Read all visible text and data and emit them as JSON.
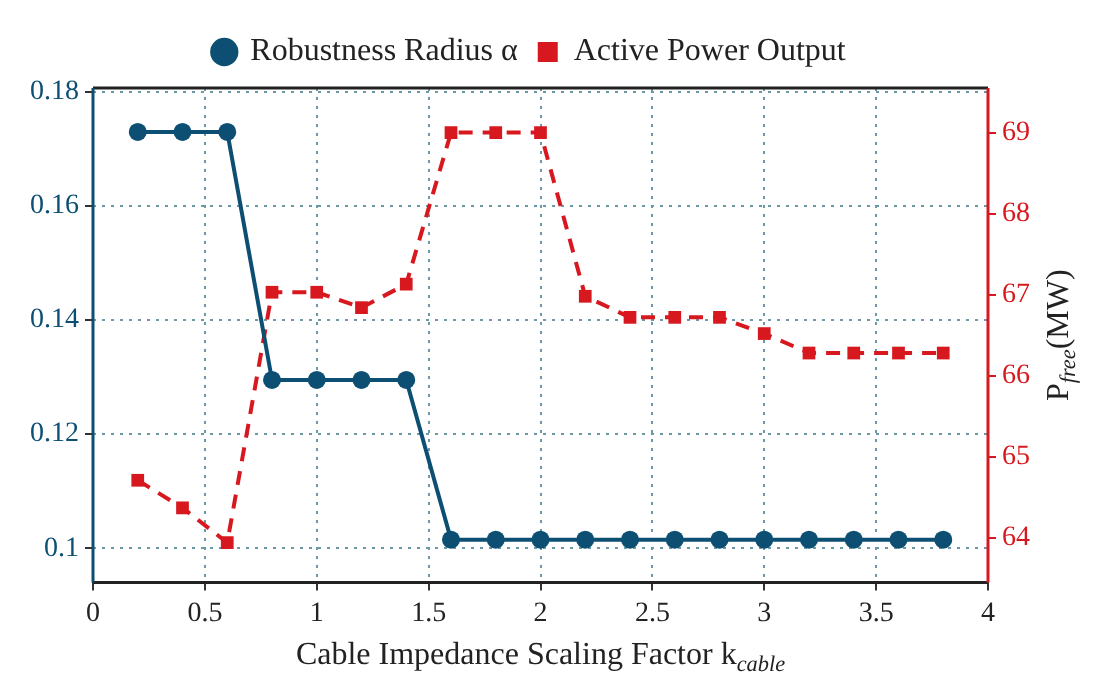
{
  "chart_data": {
    "type": "line",
    "xlabel": "Cable Impedance Scaling Factor k$_{cable}$",
    "y2label": "P$_{free}$(MW)",
    "xlim": [
      0,
      4
    ],
    "xticks": [
      0,
      0.5,
      1,
      1.5,
      2,
      2.5,
      3,
      3.5,
      4
    ],
    "ylim": [
      0.094,
      0.1807
    ],
    "yticks": [
      0.1,
      0.12,
      0.14,
      0.16,
      0.18
    ],
    "y2lim": [
      63.45,
      69.55
    ],
    "y2ticks": [
      64,
      65,
      66,
      67,
      68,
      69
    ],
    "grid": true,
    "legend": "top",
    "series": [
      {
        "name": "Robustness Radius α",
        "color": "#0d4f73",
        "marker": "circle",
        "line_style": "solid",
        "x": [
          0.2,
          0.4,
          0.6,
          0.8,
          1,
          1.2,
          1.4,
          1.6,
          1.8,
          2,
          2.2,
          2.4,
          2.6,
          2.8,
          3,
          3.2,
          3.4,
          3.6,
          3.8
        ],
        "values": [
          0.173,
          0.173,
          0.173,
          0.1295,
          0.1295,
          0.1295,
          0.1295,
          0.1015,
          0.1015,
          0.1015,
          0.1015,
          0.1015,
          0.1015,
          0.1015,
          0.1015,
          0.1015,
          0.1015,
          0.1015,
          0.1015
        ]
      },
      {
        "name": "Active Power Output",
        "color": "#d7191f",
        "marker": "square",
        "line_style": "dashed",
        "axis": "y2",
        "x": [
          0.2,
          0.4,
          0.6,
          0.8,
          1,
          1.2,
          1.4,
          1.6,
          1.8,
          2,
          2.2,
          2.4,
          2.6,
          2.8,
          3,
          3.2,
          3.4,
          3.6,
          3.8
        ],
        "values": [
          64.71,
          64.37,
          63.94,
          67.03,
          67.03,
          66.84,
          67.13,
          69,
          69,
          69,
          66.98,
          66.72,
          66.72,
          66.72,
          66.52,
          66.28,
          66.28,
          66.28,
          66.28
        ]
      }
    ]
  }
}
